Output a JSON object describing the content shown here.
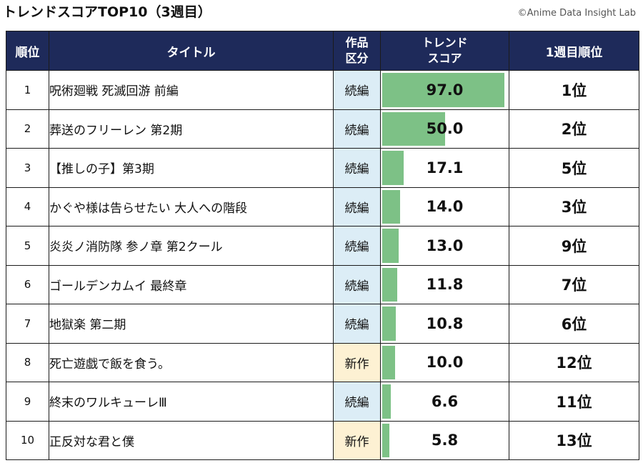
{
  "header": {
    "title": "トレンドスコアTOP10（3週目）",
    "credit": "©Anime Data Insight Lab"
  },
  "columns": {
    "rank": "順位",
    "title": "タイトル",
    "kubun_line1": "作品",
    "kubun_line2": "区分",
    "score_line1": "トレンド",
    "score_line2": "スコア",
    "prev": "1週目順位"
  },
  "colors": {
    "header_bg": "#1e2a5a",
    "bar": "#7dc186",
    "sequel_bg": "#dcedf6",
    "new_bg": "#fdf1d3"
  },
  "chart_data": {
    "type": "table",
    "score_max": 97.0,
    "rows": [
      {
        "rank": "1",
        "title": "呪術廻戦 死滅回游 前編",
        "kubun": "続編",
        "score": 97.0,
        "score_label": "97.0",
        "prev": "1位"
      },
      {
        "rank": "2",
        "title": "葬送のフリーレン 第2期",
        "kubun": "続編",
        "score": 50.0,
        "score_label": "50.0",
        "prev": "2位"
      },
      {
        "rank": "3",
        "title": "【推しの子】第3期",
        "kubun": "続編",
        "score": 17.1,
        "score_label": "17.1",
        "prev": "5位"
      },
      {
        "rank": "4",
        "title": "かぐや様は告らせたい 大人への階段",
        "kubun": "続編",
        "score": 14.0,
        "score_label": "14.0",
        "prev": "3位"
      },
      {
        "rank": "5",
        "title": "炎炎ノ消防隊 参ノ章 第2クール",
        "kubun": "続編",
        "score": 13.0,
        "score_label": "13.0",
        "prev": "9位"
      },
      {
        "rank": "6",
        "title": "ゴールデンカムイ 最終章",
        "kubun": "続編",
        "score": 11.8,
        "score_label": "11.8",
        "prev": "7位"
      },
      {
        "rank": "7",
        "title": "地獄楽 第二期",
        "kubun": "続編",
        "score": 10.8,
        "score_label": "10.8",
        "prev": "6位"
      },
      {
        "rank": "8",
        "title": "死亡遊戯で飯を食う。",
        "kubun": "新作",
        "score": 10.0,
        "score_label": "10.0",
        "prev": "12位"
      },
      {
        "rank": "9",
        "title": "終末のワルキューレⅢ",
        "kubun": "続編",
        "score": 6.6,
        "score_label": "6.6",
        "prev": "11位"
      },
      {
        "rank": "10",
        "title": "正反対な君と僕",
        "kubun": "新作",
        "score": 5.8,
        "score_label": "5.8",
        "prev": "13位"
      }
    ]
  }
}
